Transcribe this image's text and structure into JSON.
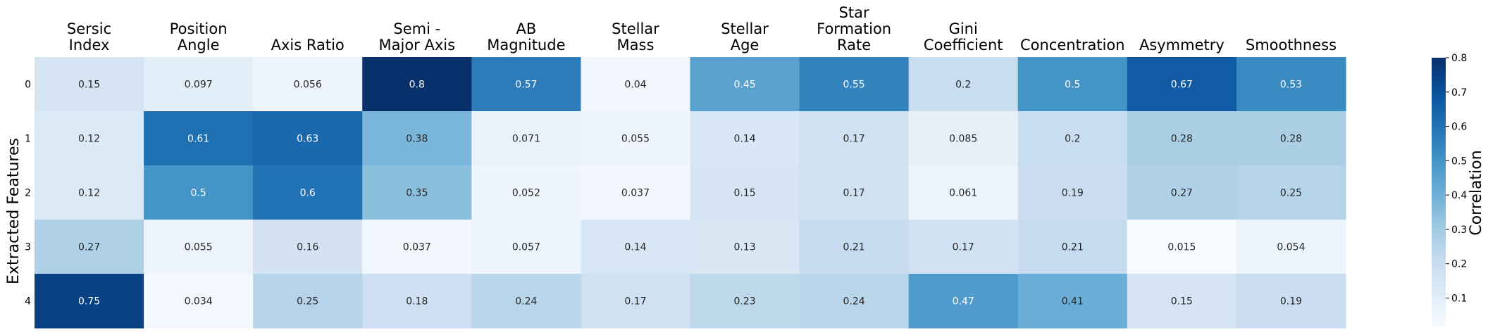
{
  "chart_data": {
    "type": "heatmap",
    "title": "",
    "xlabel": "",
    "ylabel": "Extracted Features",
    "columns": [
      [
        "Sersic",
        "Index"
      ],
      [
        "Position",
        "Angle"
      ],
      [
        "Axis Ratio"
      ],
      [
        "Semi -",
        "Major Axis"
      ],
      [
        "AB",
        "Magnitude"
      ],
      [
        "Stellar",
        "Mass"
      ],
      [
        "Stellar",
        "Age"
      ],
      [
        "Star",
        "Formation",
        "Rate"
      ],
      [
        "Gini",
        "Coefficient"
      ],
      [
        "Concentration"
      ],
      [
        "Asymmetry"
      ],
      [
        "Smoothness"
      ]
    ],
    "rows": [
      "0",
      "1",
      "2",
      "3",
      "4"
    ],
    "values": [
      [
        0.15,
        0.097,
        0.056,
        0.8,
        0.57,
        0.04,
        0.45,
        0.55,
        0.2,
        0.5,
        0.67,
        0.53
      ],
      [
        0.12,
        0.61,
        0.63,
        0.38,
        0.071,
        0.055,
        0.14,
        0.17,
        0.085,
        0.2,
        0.28,
        0.28
      ],
      [
        0.12,
        0.5,
        0.6,
        0.35,
        0.052,
        0.037,
        0.15,
        0.17,
        0.061,
        0.19,
        0.27,
        0.25
      ],
      [
        0.27,
        0.055,
        0.16,
        0.037,
        0.057,
        0.14,
        0.13,
        0.21,
        0.17,
        0.21,
        0.015,
        0.054
      ],
      [
        0.75,
        0.034,
        0.25,
        0.18,
        0.24,
        0.17,
        0.23,
        0.24,
        0.47,
        0.41,
        0.15,
        0.19
      ]
    ],
    "colormap": "Blues",
    "vmin": 0.015,
    "vmax": 0.8,
    "colorbar": {
      "label": "Correlation",
      "ticks": [
        "0.1",
        "0.2",
        "0.3",
        "0.4",
        "0.5",
        "0.6",
        "0.7",
        "0.8"
      ]
    }
  }
}
